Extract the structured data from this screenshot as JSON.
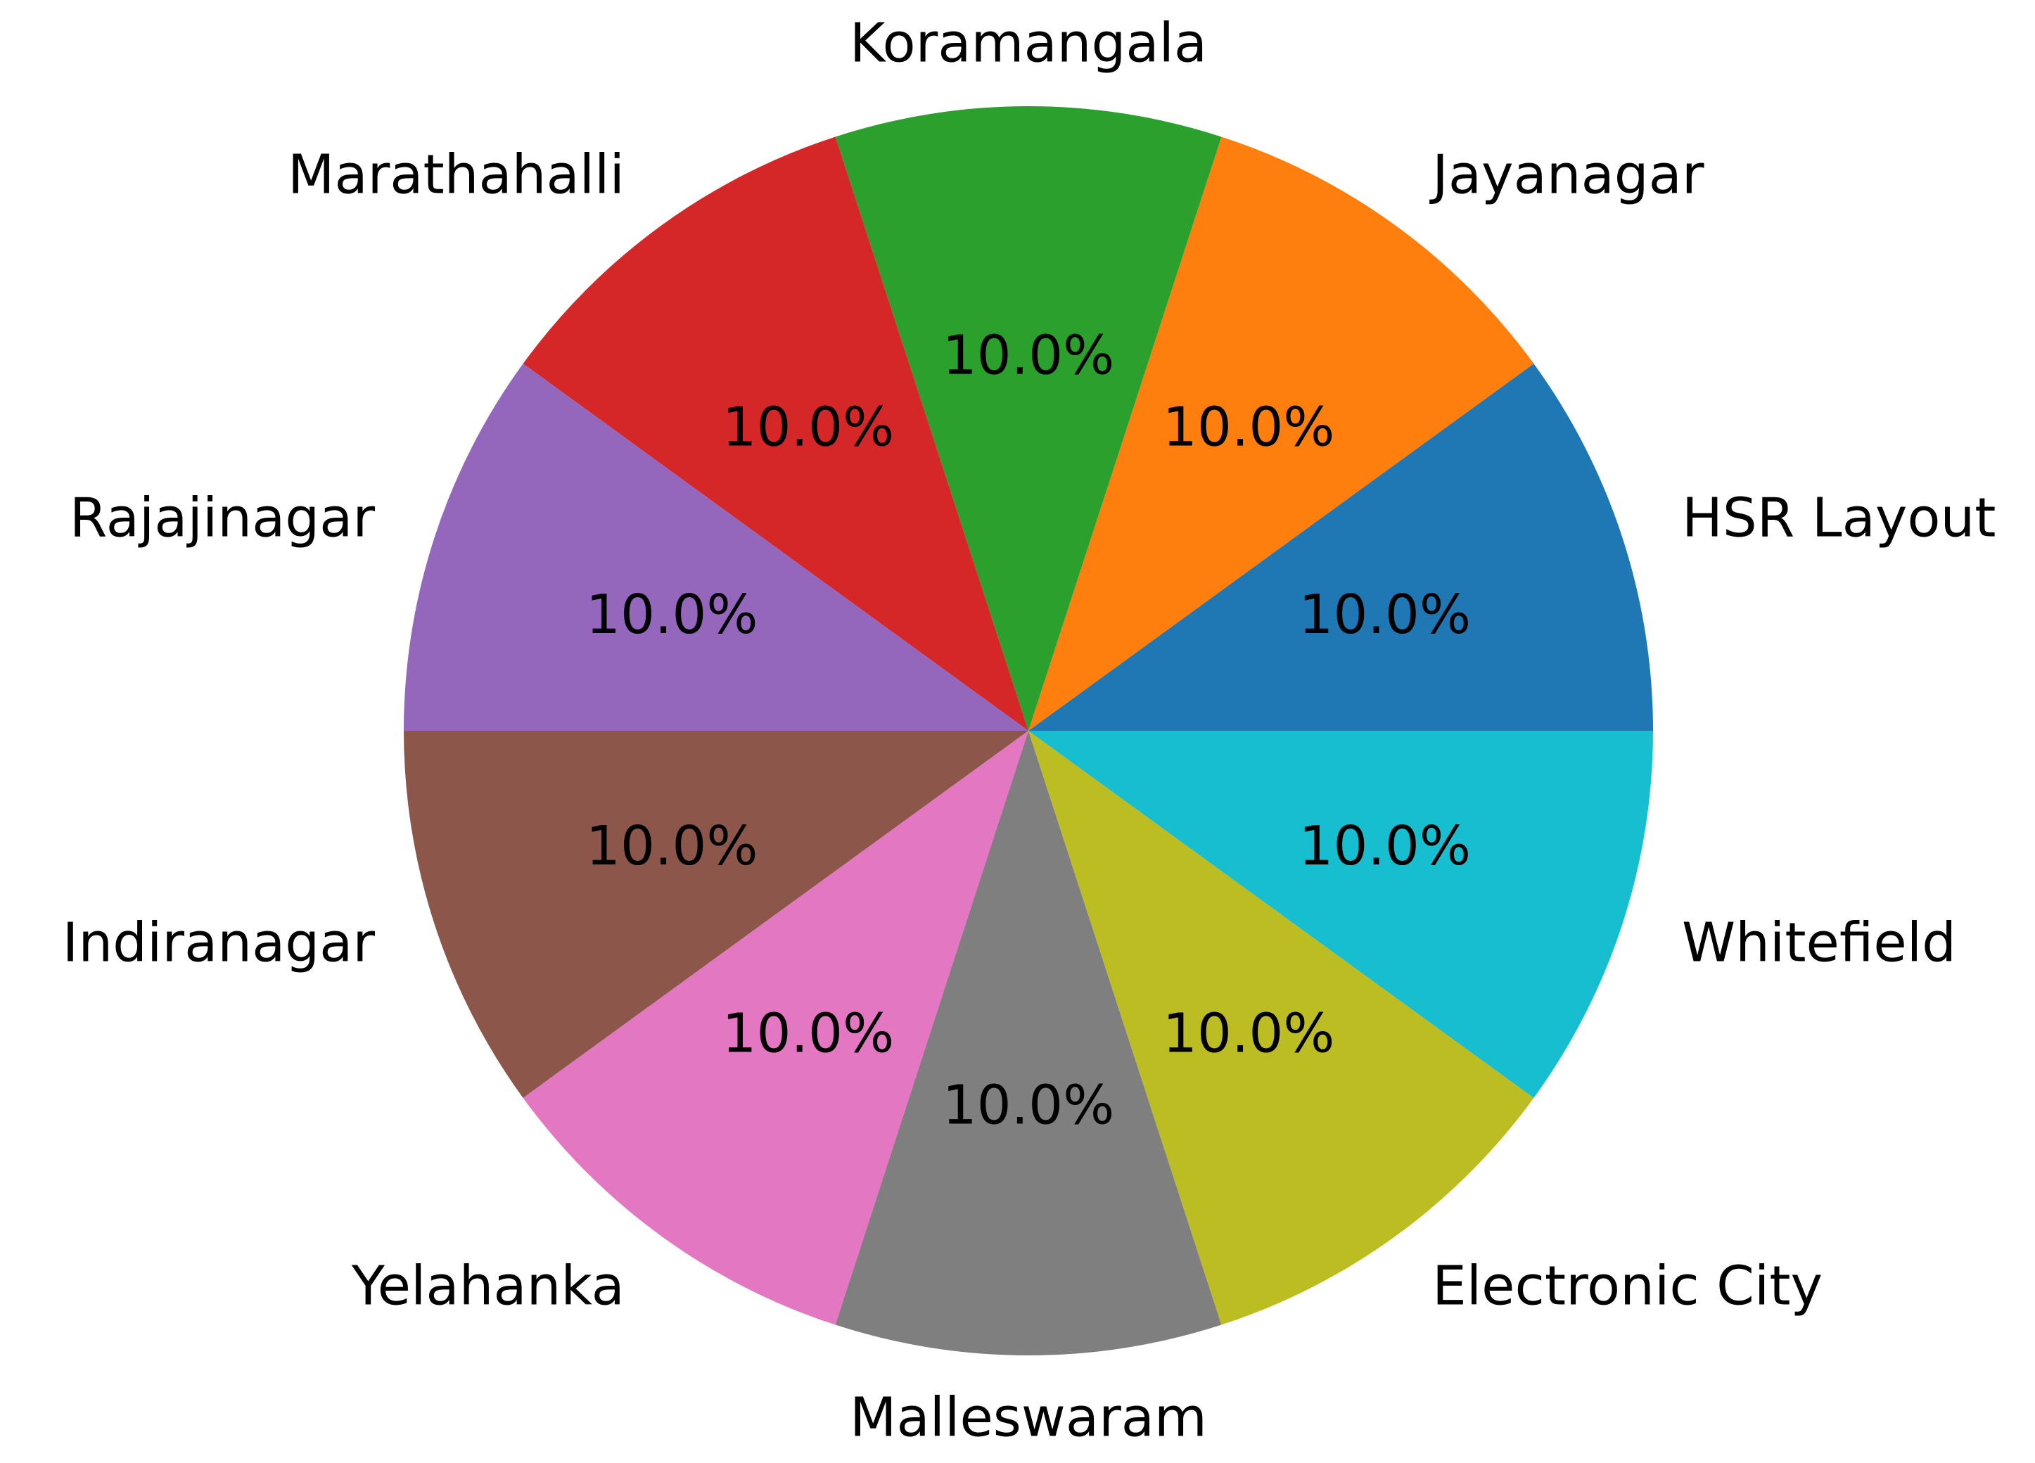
{
  "chart_data": {
    "type": "pie",
    "title": "",
    "start_angle_deg": 0,
    "direction": "counterclockwise",
    "slices": [
      {
        "label": "HSR Layout",
        "value": 10.0,
        "pct_label": "10.0%",
        "color": "#1f77b4"
      },
      {
        "label": "Jayanagar",
        "value": 10.0,
        "pct_label": "10.0%",
        "color": "#ff7f0e"
      },
      {
        "label": "Koramangala",
        "value": 10.0,
        "pct_label": "10.0%",
        "color": "#2ca02c"
      },
      {
        "label": "Marathahalli",
        "value": 10.0,
        "pct_label": "10.0%",
        "color": "#d62728"
      },
      {
        "label": "Rajajinagar",
        "value": 10.0,
        "pct_label": "10.0%",
        "color": "#9467bd"
      },
      {
        "label": "Indiranagar",
        "value": 10.0,
        "pct_label": "10.0%",
        "color": "#8c564b"
      },
      {
        "label": "Yelahanka",
        "value": 10.0,
        "pct_label": "10.0%",
        "color": "#e377c2"
      },
      {
        "label": "Malleswaram",
        "value": 10.0,
        "pct_label": "10.0%",
        "color": "#7f7f7f"
      },
      {
        "label": "Electronic City",
        "value": 10.0,
        "pct_label": "10.0%",
        "color": "#bcbd22"
      },
      {
        "label": "Whitefield",
        "value": 10.0,
        "pct_label": "10.0%",
        "color": "#17becf"
      }
    ]
  }
}
